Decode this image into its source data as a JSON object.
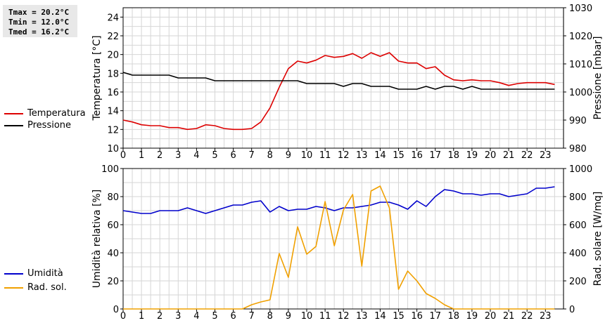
{
  "stats_box": {
    "tmax": "Tmax = 20.2°C",
    "tmin": "Tmin = 12.0°C",
    "tmed": "Tmed = 16.2°C"
  },
  "legend_top": [
    {
      "label": "Temperatura",
      "color": "#dd0000"
    },
    {
      "label": "Pressione",
      "color": "#000000"
    }
  ],
  "legend_bottom": [
    {
      "label": "Umidità",
      "color": "#0000cc"
    },
    {
      "label": "Rad. sol.",
      "color": "#f0a000"
    }
  ],
  "chart_data": [
    {
      "type": "line",
      "title": "",
      "xlabel": "",
      "xlim": [
        0,
        24
      ],
      "x_ticks": [
        0,
        1,
        2,
        3,
        4,
        5,
        6,
        7,
        8,
        9,
        10,
        11,
        12,
        13,
        14,
        15,
        16,
        17,
        18,
        19,
        20,
        21,
        22,
        23
      ],
      "ylabel": "Temperatura [°C]",
      "ylim": [
        10,
        25
      ],
      "y_ticks": [
        10,
        12,
        14,
        16,
        18,
        20,
        22,
        24
      ],
      "y2label": "Pressione [mbar]",
      "y2lim": [
        980,
        1030
      ],
      "y2_ticks": [
        980,
        990,
        1000,
        1010,
        1020,
        1030
      ],
      "grid": true,
      "legend": "left",
      "series": [
        {
          "name": "Temperatura",
          "axis": "left",
          "color": "#dd0000",
          "points": [
            [
              0,
              13.0
            ],
            [
              0.5,
              12.8
            ],
            [
              1,
              12.5
            ],
            [
              1.5,
              12.4
            ],
            [
              2,
              12.4
            ],
            [
              2.5,
              12.2
            ],
            [
              3,
              12.2
            ],
            [
              3.5,
              12.0
            ],
            [
              4,
              12.1
            ],
            [
              4.5,
              12.5
            ],
            [
              5,
              12.4
            ],
            [
              5.5,
              12.1
            ],
            [
              6,
              12.0
            ],
            [
              6.5,
              12.0
            ],
            [
              7,
              12.1
            ],
            [
              7.5,
              12.8
            ],
            [
              8,
              14.3
            ],
            [
              8.5,
              16.5
            ],
            [
              9,
              18.5
            ],
            [
              9.5,
              19.3
            ],
            [
              10,
              19.1
            ],
            [
              10.5,
              19.4
            ],
            [
              11,
              19.9
            ],
            [
              11.5,
              19.7
            ],
            [
              12,
              19.8
            ],
            [
              12.5,
              20.1
            ],
            [
              13,
              19.6
            ],
            [
              13.5,
              20.2
            ],
            [
              14,
              19.8
            ],
            [
              14.5,
              20.2
            ],
            [
              15,
              19.3
            ],
            [
              15.5,
              19.1
            ],
            [
              16,
              19.1
            ],
            [
              16.5,
              18.5
            ],
            [
              17,
              18.7
            ],
            [
              17.5,
              17.8
            ],
            [
              18,
              17.3
            ],
            [
              18.5,
              17.2
            ],
            [
              19,
              17.3
            ],
            [
              19.5,
              17.2
            ],
            [
              20,
              17.2
            ],
            [
              20.5,
              17.0
            ],
            [
              21,
              16.7
            ],
            [
              21.5,
              16.9
            ],
            [
              22,
              17.0
            ],
            [
              22.5,
              17.0
            ],
            [
              23,
              17.0
            ],
            [
              23.5,
              16.8
            ]
          ]
        },
        {
          "name": "Pressione",
          "axis": "right",
          "color": "#000000",
          "points": [
            [
              0,
              1007
            ],
            [
              0.5,
              1006
            ],
            [
              1,
              1006
            ],
            [
              1.5,
              1006
            ],
            [
              2,
              1006
            ],
            [
              2.5,
              1006
            ],
            [
              3,
              1005
            ],
            [
              3.5,
              1005
            ],
            [
              4,
              1005
            ],
            [
              4.5,
              1005
            ],
            [
              5,
              1004
            ],
            [
              5.5,
              1004
            ],
            [
              6,
              1004
            ],
            [
              6.5,
              1004
            ],
            [
              7,
              1004
            ],
            [
              7.5,
              1004
            ],
            [
              8,
              1004
            ],
            [
              8.5,
              1004
            ],
            [
              9,
              1004
            ],
            [
              9.5,
              1004
            ],
            [
              10,
              1003
            ],
            [
              10.5,
              1003
            ],
            [
              11,
              1003
            ],
            [
              11.5,
              1003
            ],
            [
              12,
              1002
            ],
            [
              12.5,
              1003
            ],
            [
              13,
              1003
            ],
            [
              13.5,
              1002
            ],
            [
              14,
              1002
            ],
            [
              14.5,
              1002
            ],
            [
              15,
              1001
            ],
            [
              15.5,
              1001
            ],
            [
              16,
              1001
            ],
            [
              16.5,
              1002
            ],
            [
              17,
              1001
            ],
            [
              17.5,
              1002
            ],
            [
              18,
              1002
            ],
            [
              18.5,
              1001
            ],
            [
              19,
              1002
            ],
            [
              19.5,
              1001
            ],
            [
              20,
              1001
            ],
            [
              20.5,
              1001
            ],
            [
              21,
              1001
            ],
            [
              21.5,
              1001
            ],
            [
              22,
              1001
            ],
            [
              22.5,
              1001
            ],
            [
              23,
              1001
            ],
            [
              23.5,
              1001
            ]
          ]
        }
      ]
    },
    {
      "type": "line",
      "title": "",
      "xlabel": "",
      "xlim": [
        0,
        24
      ],
      "x_ticks": [
        0,
        1,
        2,
        3,
        4,
        5,
        6,
        7,
        8,
        9,
        10,
        11,
        12,
        13,
        14,
        15,
        16,
        17,
        18,
        19,
        20,
        21,
        22,
        23
      ],
      "ylabel": "Umidità relativa [%]",
      "ylim": [
        0,
        100
      ],
      "y_ticks": [
        0,
        20,
        40,
        60,
        80,
        100
      ],
      "y2label": "Rad. solare [W/mq]",
      "y2lim": [
        0,
        1000
      ],
      "y2_ticks": [
        0,
        200,
        400,
        600,
        800,
        1000
      ],
      "grid": true,
      "legend": "left",
      "series": [
        {
          "name": "Umidità",
          "axis": "left",
          "color": "#0000cc",
          "points": [
            [
              0,
              70
            ],
            [
              0.5,
              69
            ],
            [
              1,
              68
            ],
            [
              1.5,
              68
            ],
            [
              2,
              70
            ],
            [
              2.5,
              70
            ],
            [
              3,
              70
            ],
            [
              3.5,
              72
            ],
            [
              4,
              70
            ],
            [
              4.5,
              68
            ],
            [
              5,
              70
            ],
            [
              5.5,
              72
            ],
            [
              6,
              74
            ],
            [
              6.5,
              74
            ],
            [
              7,
              76
            ],
            [
              7.5,
              77
            ],
            [
              8,
              69
            ],
            [
              8.5,
              73
            ],
            [
              9,
              70
            ],
            [
              9.5,
              71
            ],
            [
              10,
              71
            ],
            [
              10.5,
              73
            ],
            [
              11,
              72
            ],
            [
              11.5,
              70
            ],
            [
              12,
              72
            ],
            [
              12.5,
              72
            ],
            [
              13,
              73
            ],
            [
              13.5,
              74
            ],
            [
              14,
              76
            ],
            [
              14.5,
              76
            ],
            [
              15,
              74
            ],
            [
              15.5,
              71
            ],
            [
              16,
              77
            ],
            [
              16.5,
              73
            ],
            [
              17,
              80
            ],
            [
              17.5,
              85
            ],
            [
              18,
              84
            ],
            [
              18.5,
              82
            ],
            [
              19,
              82
            ],
            [
              19.5,
              81
            ],
            [
              20,
              82
            ],
            [
              20.5,
              82
            ],
            [
              21,
              80
            ],
            [
              21.5,
              81
            ],
            [
              22,
              82
            ],
            [
              22.5,
              86
            ],
            [
              23,
              86
            ],
            [
              23.5,
              87
            ]
          ]
        },
        {
          "name": "Rad. sol.",
          "axis": "right",
          "color": "#f0a000",
          "points": [
            [
              0,
              0
            ],
            [
              0.5,
              0
            ],
            [
              1,
              0
            ],
            [
              1.5,
              0
            ],
            [
              2,
              0
            ],
            [
              2.5,
              0
            ],
            [
              3,
              0
            ],
            [
              3.5,
              0
            ],
            [
              4,
              0
            ],
            [
              4.5,
              0
            ],
            [
              5,
              0
            ],
            [
              5.5,
              0
            ],
            [
              6,
              0
            ],
            [
              6.5,
              0
            ],
            [
              7,
              30
            ],
            [
              7.5,
              50
            ],
            [
              8,
              65
            ],
            [
              8.5,
              395
            ],
            [
              9,
              225
            ],
            [
              9.5,
              585
            ],
            [
              10,
              390
            ],
            [
              10.5,
              445
            ],
            [
              11,
              765
            ],
            [
              11.5,
              450
            ],
            [
              12,
              705
            ],
            [
              12.5,
              815
            ],
            [
              13,
              305
            ],
            [
              13.5,
              840
            ],
            [
              14,
              875
            ],
            [
              14.5,
              720
            ],
            [
              15,
              140
            ],
            [
              15.5,
              270
            ],
            [
              16,
              200
            ],
            [
              16.5,
              110
            ],
            [
              17,
              75
            ],
            [
              17.5,
              30
            ],
            [
              18,
              0
            ],
            [
              18.5,
              0
            ],
            [
              19,
              0
            ],
            [
              19.5,
              0
            ],
            [
              20,
              0
            ],
            [
              20.5,
              0
            ],
            [
              21,
              0
            ],
            [
              21.5,
              0
            ],
            [
              22,
              0
            ],
            [
              22.5,
              0
            ],
            [
              23,
              0
            ],
            [
              23.5,
              0
            ]
          ]
        }
      ]
    }
  ]
}
